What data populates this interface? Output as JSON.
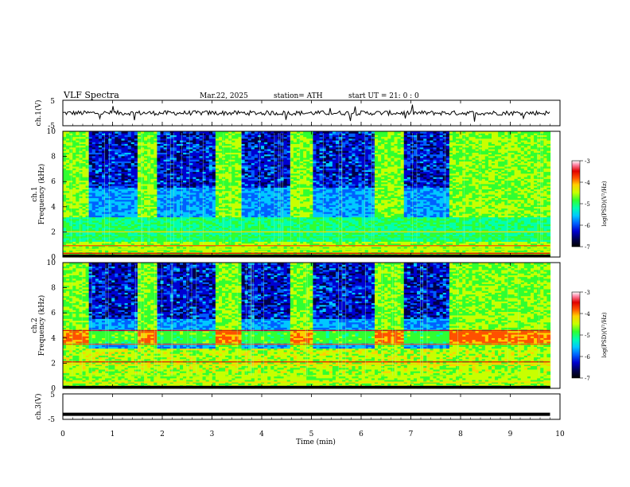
{
  "header": {
    "title": "VLF  Spectra",
    "date": "Mar.22, 2025",
    "station": "station= ATH",
    "start_ut": "start  UT  =   21: 0  : 0"
  },
  "chart_data": [
    {
      "type": "line",
      "panel": "ch1-waveform",
      "ylabel": "ch.1(V)",
      "ylim": [
        -5,
        5
      ],
      "yticks": [
        {
          "value": 5,
          "label": "5"
        },
        {
          "value": -5,
          "label": "-5"
        }
      ],
      "series": [
        {
          "color": "#000000",
          "description_of_shape": "noisy trace centered near 0 V, amplitude about +/-1 V with occasional spikes",
          "mean": 0.0,
          "noise_amplitude": 0.9
        }
      ]
    },
    {
      "type": "heatmap",
      "panel": "ch1-spectrogram",
      "ylabel": "Frequency  (kHz)",
      "channel_label": "ch.1",
      "ylim": [
        0,
        10
      ],
      "yticks": [
        {
          "value": 0,
          "label": "0"
        },
        {
          "value": 2,
          "label": "2"
        },
        {
          "value": 4,
          "label": "4"
        },
        {
          "value": 6,
          "label": "6"
        },
        {
          "value": 8,
          "label": "8"
        },
        {
          "value": 10,
          "label": "10"
        }
      ],
      "dark_segments_min": [
        [
          0.5,
          1.5
        ],
        [
          1.9,
          3.1
        ],
        [
          3.6,
          4.6
        ],
        [
          5.05,
          6.25
        ],
        [
          6.85,
          7.75
        ]
      ],
      "colorbar": {
        "label": "log(PSD)(V²/Hz)",
        "range": [
          -7,
          -3
        ],
        "ticks": [
          {
            "value": -3,
            "label": "-3"
          },
          {
            "value": -4,
            "label": "-4"
          },
          {
            "value": -5,
            "label": "-5"
          },
          {
            "value": -6,
            "label": "-6"
          },
          {
            "value": -7,
            "label": "-7"
          }
        ]
      }
    },
    {
      "type": "heatmap",
      "panel": "ch2-spectrogram",
      "ylabel": "Frequency  (kHz)",
      "channel_label": "ch.2",
      "ylim": [
        0,
        10
      ],
      "yticks": [
        {
          "value": 0,
          "label": "0"
        },
        {
          "value": 2,
          "label": "2"
        },
        {
          "value": 4,
          "label": "4"
        },
        {
          "value": 6,
          "label": "6"
        },
        {
          "value": 8,
          "label": "8"
        },
        {
          "value": 10,
          "label": "10"
        }
      ],
      "dark_segments_min": [
        [
          0.5,
          1.5
        ],
        [
          1.9,
          3.1
        ],
        [
          3.6,
          4.6
        ],
        [
          5.05,
          6.25
        ],
        [
          6.85,
          7.75
        ]
      ],
      "colorbar": {
        "label": "log(PSD)(V²/Hz)",
        "range": [
          -7,
          -3
        ],
        "ticks": [
          {
            "value": -3,
            "label": "-3"
          },
          {
            "value": -4,
            "label": "-4"
          },
          {
            "value": -5,
            "label": "-5"
          },
          {
            "value": -6,
            "label": "-6"
          },
          {
            "value": -7,
            "label": "-7"
          }
        ]
      }
    },
    {
      "type": "line",
      "panel": "ch3-waveform",
      "ylabel": "ch.3(V)",
      "ylim": [
        -5,
        5
      ],
      "yticks": [
        {
          "value": 5,
          "label": "5"
        },
        {
          "value": -5,
          "label": "-5"
        }
      ],
      "series": [
        {
          "color": "#000000",
          "description_of_shape": "flat thick line near -3 V",
          "mean": -3.0,
          "noise_amplitude": 0.0
        }
      ]
    }
  ],
  "x_axis": {
    "xlabel": "Time  (min)",
    "xlim": [
      0,
      10
    ],
    "ticks": [
      {
        "value": 0,
        "label": "0"
      },
      {
        "value": 1,
        "label": "1"
      },
      {
        "value": 2,
        "label": "2"
      },
      {
        "value": 3,
        "label": "3"
      },
      {
        "value": 4,
        "label": "4"
      },
      {
        "value": 5,
        "label": "5"
      },
      {
        "value": 6,
        "label": "6"
      },
      {
        "value": 7,
        "label": "7"
      },
      {
        "value": 8,
        "label": "8"
      },
      {
        "value": 9,
        "label": "9"
      },
      {
        "value": 10,
        "label": "10"
      }
    ],
    "data_end": 9.8
  },
  "colors": {
    "colormap": [
      "#000000",
      "#00004a",
      "#0000d0",
      "#0060ff",
      "#00c8ff",
      "#00ffb0",
      "#30ff30",
      "#c8ff00",
      "#ffd000",
      "#ff5000",
      "#e00000",
      "#ff80a0",
      "#ffffff"
    ]
  }
}
